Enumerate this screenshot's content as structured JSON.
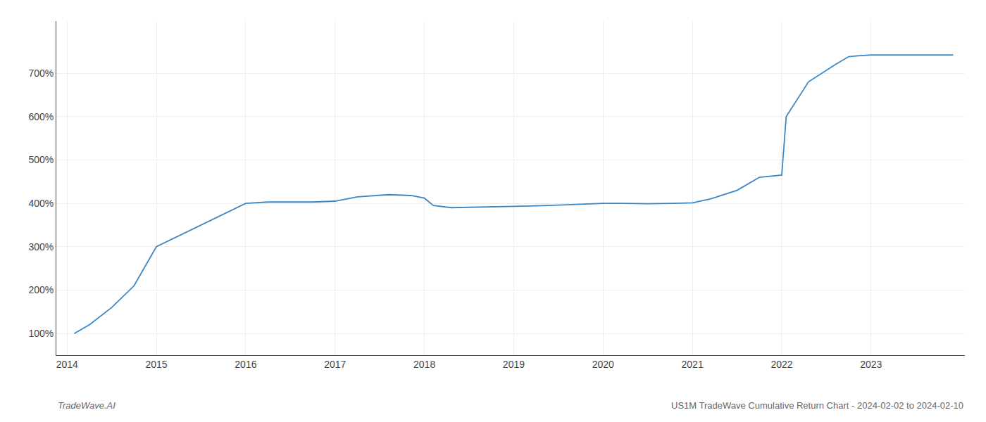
{
  "chart_data": {
    "type": "line",
    "x": [
      2014.08,
      2014.25,
      2014.5,
      2014.75,
      2015.0,
      2015.15,
      2015.4,
      2015.7,
      2016.0,
      2016.25,
      2016.5,
      2016.75,
      2017.0,
      2017.25,
      2017.6,
      2017.85,
      2018.0,
      2018.1,
      2018.3,
      2018.6,
      2018.9,
      2019.2,
      2019.5,
      2019.8,
      2020.0,
      2020.2,
      2020.5,
      2020.8,
      2021.0,
      2021.2,
      2021.5,
      2021.75,
      2021.85,
      2022.0,
      2022.05,
      2022.3,
      2022.6,
      2022.75,
      2022.85,
      2023.0,
      2023.5,
      2023.92
    ],
    "values": [
      100,
      120,
      160,
      210,
      300,
      315,
      340,
      370,
      400,
      403,
      403,
      403,
      405,
      415,
      420,
      418,
      412,
      395,
      390,
      391,
      392,
      394,
      396,
      398,
      400,
      400,
      399,
      400,
      401,
      410,
      430,
      460,
      462,
      465,
      600,
      680,
      720,
      738,
      740,
      742,
      742,
      742
    ],
    "color": "#3a87c8",
    "xlim": [
      2013.88,
      2024.05
    ],
    "xticks": [
      2014,
      2015,
      2016,
      2017,
      2018,
      2019,
      2020,
      2021,
      2022,
      2023
    ],
    "ylim": [
      50,
      820
    ],
    "yticks": [
      {
        "value": 100,
        "label": "100%"
      },
      {
        "value": 200,
        "label": "200%"
      },
      {
        "value": 300,
        "label": "300%"
      },
      {
        "value": 400,
        "label": "400%"
      },
      {
        "value": 500,
        "label": "500%"
      },
      {
        "value": 600,
        "label": "600%"
      },
      {
        "value": 700,
        "label": "700%"
      }
    ],
    "grid": true,
    "annotations": [
      "TradeWave.AI",
      "US1M TradeWave Cumulative Return Chart - 2024-02-02 to 2024-02-10"
    ]
  }
}
